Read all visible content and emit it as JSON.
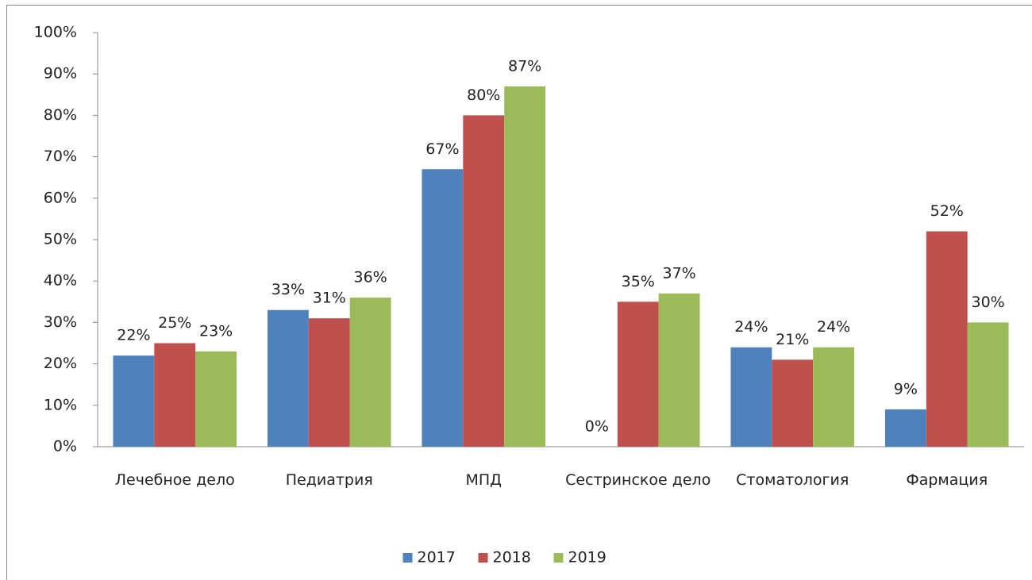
{
  "chart_data": {
    "type": "bar",
    "categories": [
      "Лечебное дело",
      "Педиатрия",
      "МПД",
      "Сестринское дело",
      "Стоматология",
      "Фармация"
    ],
    "series": [
      {
        "name": "2017",
        "color": "#4f81bd",
        "values": [
          22,
          33,
          67,
          0,
          24,
          9
        ],
        "value_labels": [
          "22%",
          "33%",
          "67%",
          "0%",
          "24%",
          "9%"
        ]
      },
      {
        "name": "2018",
        "color": "#c0504d",
        "values": [
          25,
          31,
          80,
          35,
          21,
          52
        ],
        "value_labels": [
          "25%",
          "31%",
          "80%",
          "35%",
          "21%",
          "52%"
        ]
      },
      {
        "name": "2019",
        "color": "#9bbb59",
        "values": [
          23,
          36,
          87,
          37,
          24,
          30
        ],
        "value_labels": [
          "23%",
          "36%",
          "87%",
          "37%",
          "24%",
          "30%"
        ]
      }
    ],
    "ylim": [
      0,
      100
    ],
    "yticks": [
      {
        "value": 0,
        "label": "0%"
      },
      {
        "value": 10,
        "label": "10%"
      },
      {
        "value": 20,
        "label": "20%"
      },
      {
        "value": 30,
        "label": "30%"
      },
      {
        "value": 40,
        "label": "40%"
      },
      {
        "value": 50,
        "label": "50%"
      },
      {
        "value": 60,
        "label": "60%"
      },
      {
        "value": 70,
        "label": "70%"
      },
      {
        "value": 80,
        "label": "80%"
      },
      {
        "value": 90,
        "label": "90%"
      },
      {
        "value": 100,
        "label": "100%"
      }
    ],
    "grid": false,
    "legend": "bottom"
  }
}
